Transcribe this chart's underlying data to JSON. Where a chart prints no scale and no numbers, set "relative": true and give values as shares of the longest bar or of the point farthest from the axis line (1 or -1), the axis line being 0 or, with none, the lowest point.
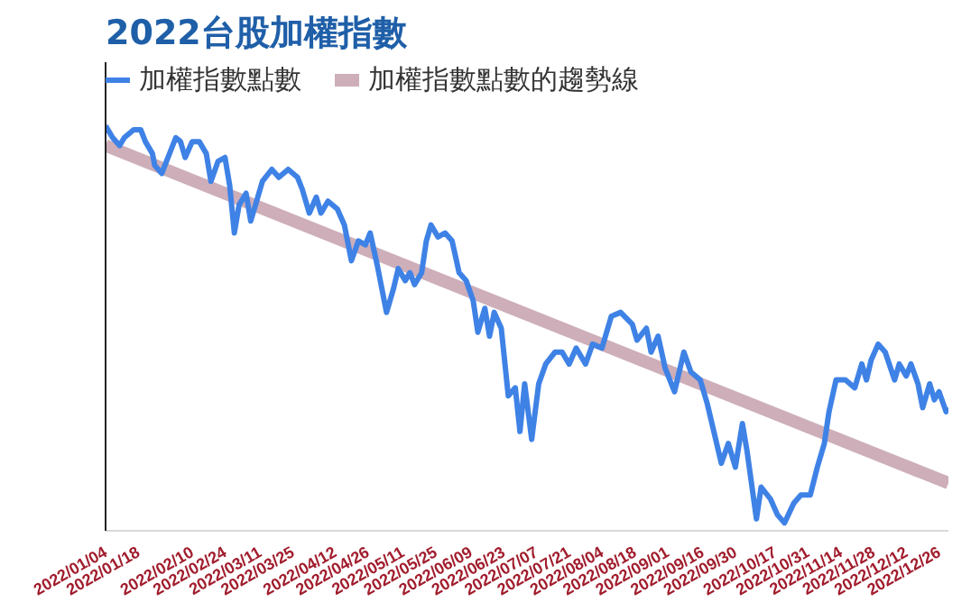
{
  "chart_data": {
    "type": "line",
    "title": "2022台股加權指數",
    "relative": true,
    "legend": "top",
    "grid": false,
    "tick_labels": "x",
    "marker": "none",
    "line_style": "solid",
    "xlim": [
      "2022-01-04",
      "2022-12-30"
    ],
    "xticks": [
      {
        "value": "2022-01-04",
        "label": "2022/01/04"
      },
      {
        "value": "2022-01-18",
        "label": "2022/01/18"
      },
      {
        "value": "2022-02-10",
        "label": "2022/02/10"
      },
      {
        "value": "2022-02-24",
        "label": "2022/02/24"
      },
      {
        "value": "2022-03-11",
        "label": "2022/03/11"
      },
      {
        "value": "2022-03-25",
        "label": "2022/03/25"
      },
      {
        "value": "2022-04-12",
        "label": "2022/04/12"
      },
      {
        "value": "2022-04-26",
        "label": "2022/04/26"
      },
      {
        "value": "2022-05-11",
        "label": "2022/05/11"
      },
      {
        "value": "2022-05-25",
        "label": "2022/05/25"
      },
      {
        "value": "2022-06-09",
        "label": "2022/06/09"
      },
      {
        "value": "2022-06-23",
        "label": "2022/06/23"
      },
      {
        "value": "2022-07-07",
        "label": "2022/07/07"
      },
      {
        "value": "2022-07-21",
        "label": "2022/07/21"
      },
      {
        "value": "2022-08-04",
        "label": "2022/08/04"
      },
      {
        "value": "2022-08-18",
        "label": "2022/08/18"
      },
      {
        "value": "2022-09-01",
        "label": "2022/09/01"
      },
      {
        "value": "2022-09-16",
        "label": "2022/09/16"
      },
      {
        "value": "2022-09-30",
        "label": "2022/09/30"
      },
      {
        "value": "2022-10-17",
        "label": "2022/10/17"
      },
      {
        "value": "2022-10-31",
        "label": "2022/10/31"
      },
      {
        "value": "2022-11-14",
        "label": "2022/11/14"
      },
      {
        "value": "2022-11-28",
        "label": "2022/11/28"
      },
      {
        "value": "2022-12-12",
        "label": "2022/12/12"
      },
      {
        "value": "2022-12-26",
        "label": "2022/12/26"
      }
    ],
    "series": [
      {
        "name": "加權指數點數",
        "color": "#3f82e6",
        "x": [
          "2022-01-04",
          "2022-01-07",
          "2022-01-10",
          "2022-01-12",
          "2022-01-16",
          "2022-01-19",
          "2022-01-21",
          "2022-01-24",
          "2022-01-25",
          "2022-01-28",
          "2022-01-30",
          "2022-02-03",
          "2022-02-05",
          "2022-02-07",
          "2022-02-10",
          "2022-02-13",
          "2022-02-16",
          "2022-02-18",
          "2022-02-21",
          "2022-02-24",
          "2022-02-26",
          "2022-02-28",
          "2022-03-02",
          "2022-03-05",
          "2022-03-07",
          "2022-03-10",
          "2022-03-12",
          "2022-03-16",
          "2022-03-19",
          "2022-03-23",
          "2022-03-27",
          "2022-03-29",
          "2022-04-01",
          "2022-04-04",
          "2022-04-06",
          "2022-04-09",
          "2022-04-13",
          "2022-04-16",
          "2022-04-19",
          "2022-04-22",
          "2022-04-25",
          "2022-04-27",
          "2022-04-30",
          "2022-05-01",
          "2022-05-04",
          "2022-05-07",
          "2022-05-09",
          "2022-05-12",
          "2022-05-14",
          "2022-05-16",
          "2022-05-19",
          "2022-05-21",
          "2022-05-23",
          "2022-05-26",
          "2022-05-29",
          "2022-06-01",
          "2022-06-04",
          "2022-06-07",
          "2022-06-10",
          "2022-06-12",
          "2022-06-15",
          "2022-06-17",
          "2022-06-19",
          "2022-06-22",
          "2022-06-25",
          "2022-06-28",
          "2022-06-30",
          "2022-07-02",
          "2022-07-05",
          "2022-07-08",
          "2022-07-11",
          "2022-07-15",
          "2022-07-18",
          "2022-07-21",
          "2022-07-24",
          "2022-07-28",
          "2022-07-31",
          "2022-08-04",
          "2022-08-08",
          "2022-08-12",
          "2022-08-17",
          "2022-08-19",
          "2022-08-23",
          "2022-08-25",
          "2022-08-28",
          "2022-08-31",
          "2022-09-04",
          "2022-09-08",
          "2022-09-11",
          "2022-09-15",
          "2022-09-18",
          "2022-09-22",
          "2022-09-24",
          "2022-09-27",
          "2022-09-30",
          "2022-10-03",
          "2022-10-05",
          "2022-10-09",
          "2022-10-11",
          "2022-10-15",
          "2022-10-18",
          "2022-10-21",
          "2022-10-25",
          "2022-10-28",
          "2022-11-01",
          "2022-11-04",
          "2022-11-07",
          "2022-11-09",
          "2022-11-12",
          "2022-11-16",
          "2022-11-20",
          "2022-11-23",
          "2022-11-25",
          "2022-11-27",
          "2022-11-30",
          "2022-12-03",
          "2022-12-07",
          "2022-12-09",
          "2022-12-12",
          "2022-12-14",
          "2022-12-17",
          "2022-12-19",
          "2022-12-22",
          "2022-12-24",
          "2022-12-26",
          "2022-12-29",
          "2022-12-30"
        ],
        "values": [
          1.0,
          0.97,
          0.95,
          0.97,
          0.99,
          0.99,
          0.96,
          0.93,
          0.9,
          0.88,
          0.91,
          0.97,
          0.96,
          0.92,
          0.96,
          0.96,
          0.93,
          0.86,
          0.91,
          0.92,
          0.85,
          0.73,
          0.8,
          0.83,
          0.76,
          0.82,
          0.86,
          0.89,
          0.87,
          0.89,
          0.87,
          0.84,
          0.78,
          0.82,
          0.78,
          0.81,
          0.79,
          0.75,
          0.66,
          0.71,
          0.7,
          0.73,
          0.65,
          0.62,
          0.53,
          0.59,
          0.64,
          0.61,
          0.63,
          0.6,
          0.63,
          0.71,
          0.75,
          0.72,
          0.73,
          0.71,
          0.63,
          0.61,
          0.56,
          0.48,
          0.54,
          0.47,
          0.53,
          0.49,
          0.32,
          0.34,
          0.23,
          0.35,
          0.21,
          0.35,
          0.4,
          0.43,
          0.43,
          0.4,
          0.44,
          0.4,
          0.45,
          0.44,
          0.52,
          0.53,
          0.5,
          0.46,
          0.49,
          0.43,
          0.47,
          0.39,
          0.33,
          0.43,
          0.38,
          0.36,
          0.3,
          0.2,
          0.15,
          0.2,
          0.14,
          0.25,
          0.18,
          0.01,
          0.09,
          0.06,
          0.02,
          0.0,
          0.05,
          0.07,
          0.07,
          0.14,
          0.2,
          0.28,
          0.36,
          0.36,
          0.34,
          0.4,
          0.36,
          0.41,
          0.45,
          0.43,
          0.36,
          0.4,
          0.37,
          0.4,
          0.35,
          0.29,
          0.35,
          0.31,
          0.33,
          0.28,
          0.29
        ]
      },
      {
        "name": "加權指數點數的趨勢線",
        "color": "#c4a0ad",
        "x": [
          "2022-01-04",
          "2022-12-30"
        ],
        "values": [
          0.95,
          0.1
        ]
      }
    ]
  }
}
